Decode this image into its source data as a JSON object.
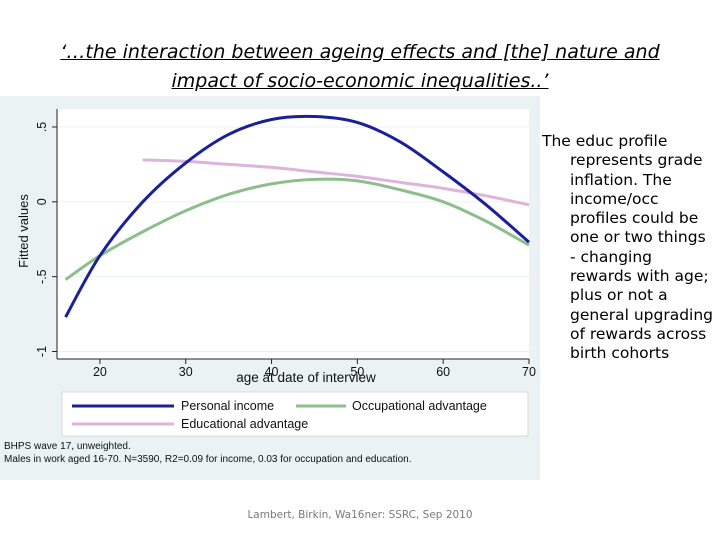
{
  "slide": {
    "title": "‘…the interaction between ageing effects and [the] nature and impact of socio-economic inequalities..’",
    "notes_first": "The educ profile",
    "notes_rest": "represents grade inflation. The income/occ profiles could be one or two things - changing rewards with age; plus or not a general upgrading of rewards across birth cohorts",
    "footer": "Lambert, Birkin, Wa16ner: SSRC, Sep 2010"
  },
  "colors": {
    "personal_income": "#1a1f9a",
    "occupational": "#8cbf8c",
    "educational": "#dcb4dc",
    "plot_bg": "#ffffff",
    "outer_bg": "#eaf2f3"
  },
  "chart_data": {
    "type": "line",
    "ylabel": "Fitted values",
    "xlabel": "age at date of interview",
    "xlim": [
      15,
      70
    ],
    "ylim": [
      -1.05,
      0.62
    ],
    "xticks": [
      20,
      30,
      40,
      50,
      60,
      70
    ],
    "yticks": [
      -1,
      -0.5,
      0,
      0.5
    ],
    "ytick_labels": [
      "-1",
      "-.5",
      "0",
      ".5"
    ],
    "series": [
      {
        "name": "Personal income",
        "x": [
          16,
          20,
          25,
          30,
          35,
          40,
          45,
          50,
          55,
          60,
          65,
          70
        ],
        "y": [
          -0.77,
          -0.36,
          0.0,
          0.26,
          0.45,
          0.55,
          0.57,
          0.53,
          0.4,
          0.2,
          -0.02,
          -0.27
        ]
      },
      {
        "name": "Occupational advantage",
        "x": [
          16,
          20,
          25,
          30,
          35,
          40,
          45,
          50,
          55,
          60,
          65,
          70
        ],
        "y": [
          -0.52,
          -0.36,
          -0.2,
          -0.06,
          0.05,
          0.12,
          0.15,
          0.14,
          0.08,
          0.0,
          -0.13,
          -0.29
        ]
      },
      {
        "name": "Educational advantage",
        "x": [
          25,
          30,
          35,
          40,
          45,
          50,
          55,
          60,
          65,
          70
        ],
        "y": [
          0.28,
          0.27,
          0.25,
          0.23,
          0.2,
          0.17,
          0.13,
          0.09,
          0.04,
          -0.02
        ]
      }
    ],
    "caption_line1": "BHPS wave 17, unweighted.",
    "caption_line2": "Males in work aged 16-70. N=3590, R2=0.09 for income, 0.03 for occupation and education."
  }
}
